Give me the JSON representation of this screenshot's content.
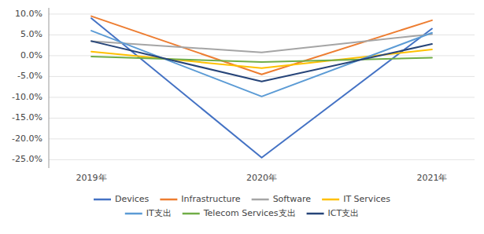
{
  "chart_data": {
    "type": "line",
    "categories": [
      "2019年",
      "2020年",
      "2021年"
    ],
    "series": [
      {
        "name": "Devices",
        "color": "#4472C4",
        "values": [
          9.0,
          -24.5,
          6.5
        ]
      },
      {
        "name": "Infrastructure",
        "color": "#ED7D31",
        "values": [
          9.5,
          -4.5,
          8.5
        ]
      },
      {
        "name": "Software",
        "color": "#A5A5A5",
        "values": [
          3.5,
          0.8,
          5.2
        ]
      },
      {
        "name": "IT Services",
        "color": "#FFC000",
        "values": [
          1.0,
          -3.0,
          1.5
        ]
      },
      {
        "name": "IT支出",
        "color": "#5B9BD5",
        "values": [
          6.0,
          -9.8,
          5.5
        ]
      },
      {
        "name": "Telecom Services支出",
        "color": "#70AD47",
        "values": [
          -0.2,
          -1.5,
          -0.5
        ]
      },
      {
        "name": "ICT支出",
        "color": "#264478",
        "values": [
          3.5,
          -6.2,
          2.8
        ]
      }
    ],
    "ylim": [
      -27,
      11.5
    ],
    "yticks": [
      {
        "value": 10.0,
        "label": "10.0%"
      },
      {
        "value": 5.0,
        "label": "5.0%"
      },
      {
        "value": 0.0,
        "label": "0.0%"
      },
      {
        "value": -5.0,
        "label": "-5.0%"
      },
      {
        "value": -10.0,
        "label": "-10.0%"
      },
      {
        "value": -15.0,
        "label": "-15.0%"
      },
      {
        "value": -20.0,
        "label": "-20.0%"
      },
      {
        "value": -25.0,
        "label": "-25.0%"
      }
    ],
    "grid": true,
    "legend": "bottom"
  }
}
